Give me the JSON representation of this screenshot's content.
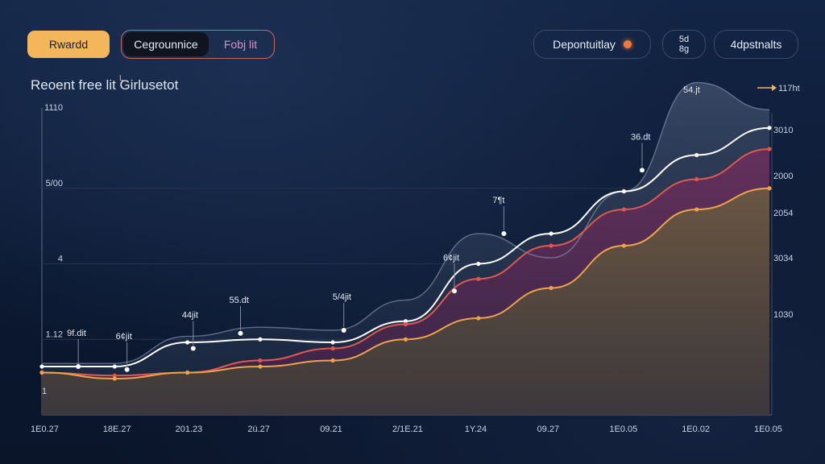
{
  "toolbar": {
    "primary_label": "Rwardd",
    "segment_a_label": "Cegrounnice",
    "segment_b_label": "Fobj lit",
    "deposit_label": "Depontuitlay",
    "small_line1": "5d",
    "small_line2": "8g",
    "adjust_label": "4dpstnalts"
  },
  "chart_data": {
    "type": "area",
    "title": "Reoent free lit Girlusetot",
    "title_mark": "L",
    "legend_mark": "117ht",
    "x_tick_labels": [
      "1E0.27",
      "18E.27",
      "201.23",
      "2ü.27",
      "09.21",
      "2/1E.21",
      "1Y.24",
      "09.27",
      "1E0.05",
      "1E0.02",
      "1E0.05"
    ],
    "y_left_labels": [
      "1110",
      "5/00",
      "4",
      "1.12"
    ],
    "y_left_bottom": "1",
    "y_right_labels": [
      "3010",
      "2000",
      "2054",
      "3034",
      "1030"
    ],
    "peak_label": "54.jt",
    "x": [
      0,
      10,
      20,
      30,
      40,
      50,
      60,
      70,
      80,
      90,
      100
    ],
    "ylim": [
      0,
      100
    ],
    "series": [
      {
        "values": [
          14,
          12,
          14,
          16,
          18,
          25,
          32,
          42,
          56,
          68,
          75
        ],
        "color": "#f0a24a"
      },
      {
        "values": [
          14,
          13,
          14,
          18,
          22,
          30,
          45,
          56,
          68,
          78,
          88
        ],
        "color": "#e0594e"
      },
      {
        "values": [
          16,
          16,
          24,
          25,
          24,
          31,
          50,
          60,
          74,
          86,
          95
        ],
        "color": "#ffffff"
      },
      {
        "values": [
          17,
          17,
          26,
          29,
          28,
          38,
          60,
          52,
          74,
          110,
          101
        ],
        "color": "#8a97b8"
      }
    ],
    "annotations": [
      {
        "x": 5,
        "y": 16,
        "label": "9f.dit"
      },
      {
        "x": 11.7,
        "y": 15,
        "label": "6¢jit"
      },
      {
        "x": 20.8,
        "y": 22,
        "label": "44jit"
      },
      {
        "x": 27.3,
        "y": 27,
        "label": "55.dt"
      },
      {
        "x": 41.5,
        "y": 28,
        "label": "5/4jit"
      },
      {
        "x": 56.7,
        "y": 41,
        "label": "6¢jit"
      },
      {
        "x": 63.5,
        "y": 60,
        "label": "7¶t"
      },
      {
        "x": 82.5,
        "y": 81,
        "label": "36.dt"
      }
    ]
  }
}
